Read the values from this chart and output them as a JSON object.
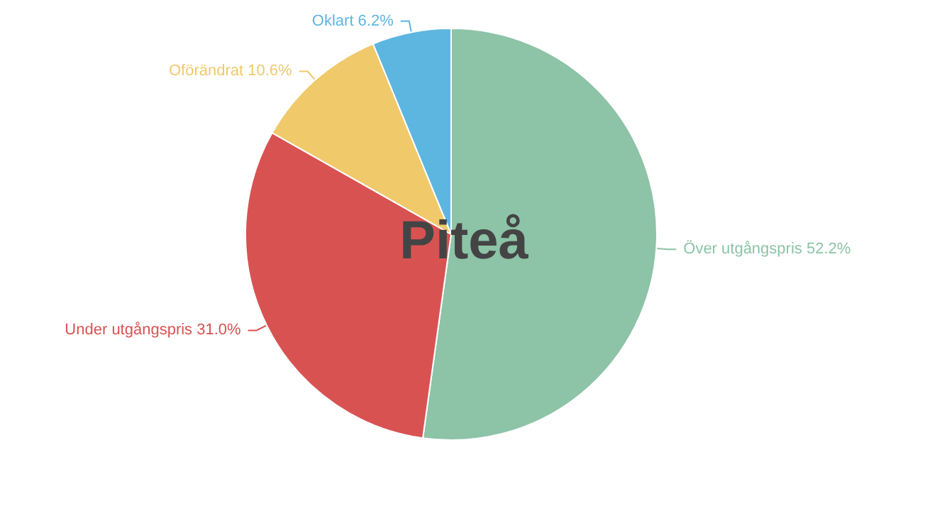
{
  "chart_data": {
    "type": "pie",
    "title": "Piteå",
    "categories": [
      "Över utgångspris",
      "Under utgångspris",
      "Oförändrat",
      "Oklart"
    ],
    "values": [
      52.2,
      31.0,
      10.6,
      6.2
    ],
    "value_labels": [
      "52.2%",
      "31.0%",
      "10.6%",
      "6.2%"
    ],
    "colors": [
      "#8dc3a7",
      "#d95252",
      "#f0c96b",
      "#5cb6e0"
    ],
    "legend": false
  }
}
